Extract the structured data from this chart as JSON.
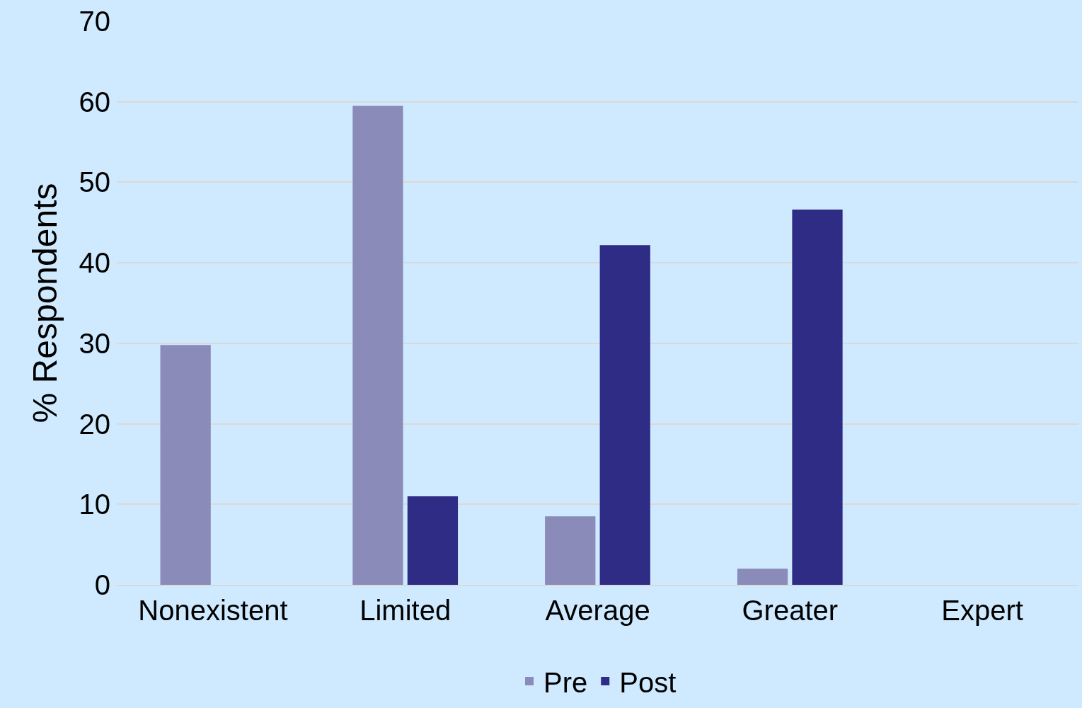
{
  "chart_data": {
    "type": "bar",
    "ylabel": "% Respondents",
    "categories": [
      "Nonexistent",
      "Limited",
      "Average",
      "Greater",
      "Expert"
    ],
    "series": [
      {
        "name": "Pre",
        "color": "#8a8bb8",
        "values": [
          29.8,
          59.5,
          8.5,
          2.0,
          0
        ]
      },
      {
        "name": "Post",
        "color": "#2e2c84",
        "values": [
          0,
          11.0,
          42.2,
          46.6,
          0
        ]
      }
    ],
    "ylim": [
      0,
      70
    ],
    "yticks": [
      0,
      10,
      20,
      30,
      40,
      50,
      60,
      70
    ],
    "grid": "y",
    "legend": "bottom"
  }
}
